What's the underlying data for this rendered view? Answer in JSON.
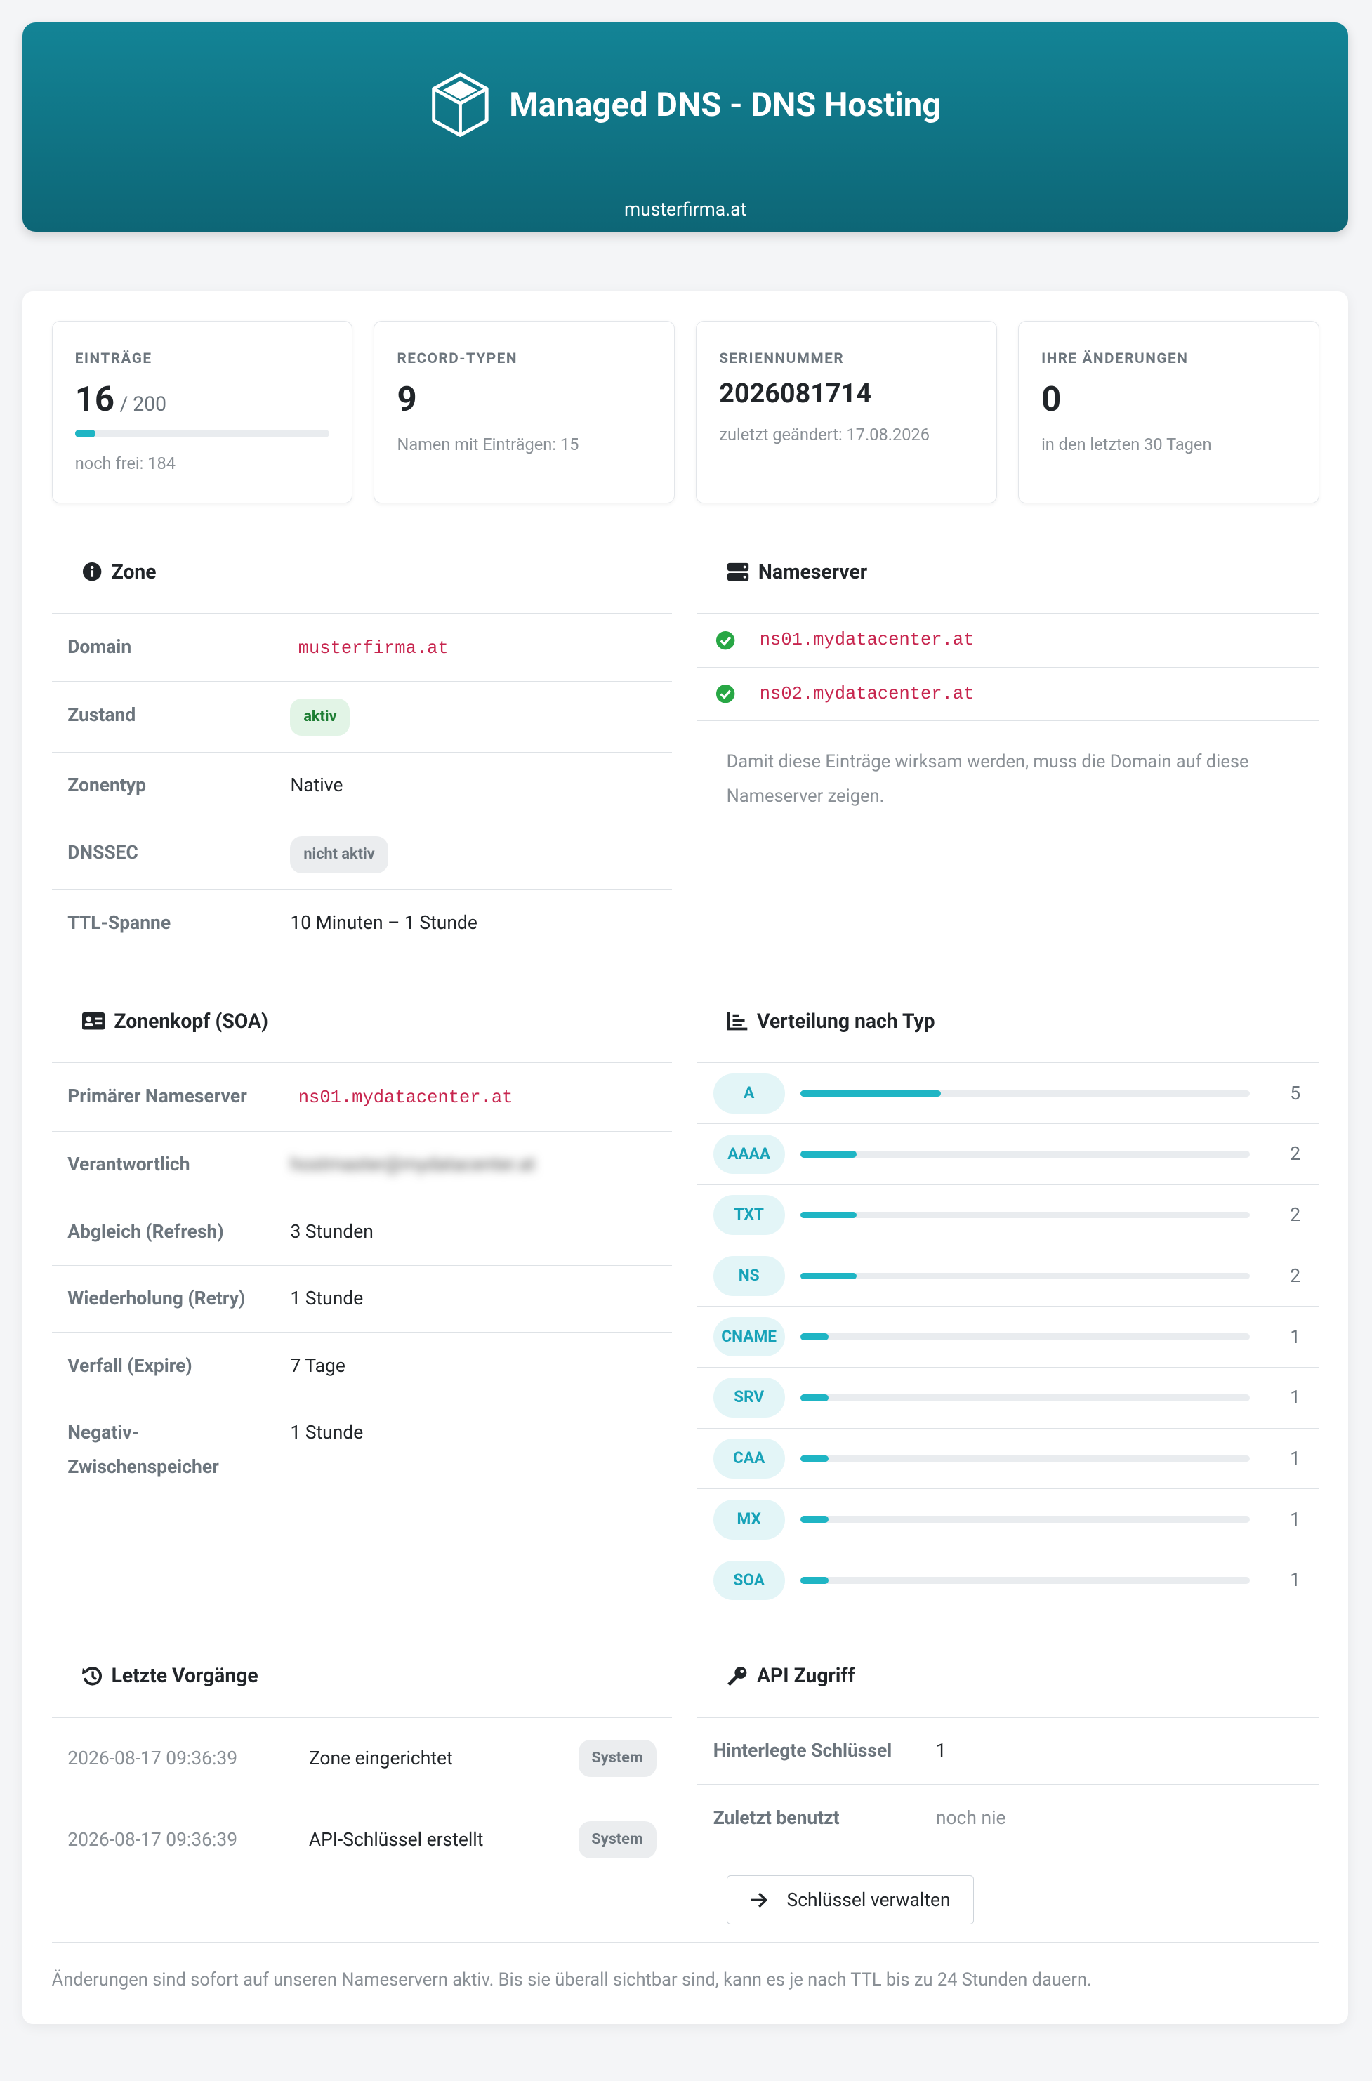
{
  "header": {
    "title": "Managed DNS - DNS Hosting",
    "domain": "musterfirma.at"
  },
  "stats": [
    {
      "label": "EINTRÄGE",
      "value": 16,
      "limit": {
        "value": 200,
        "label": "/ 200"
      },
      "note": "noch frei: 184"
    },
    {
      "label": "RECORD-TYPEN",
      "value": 9,
      "note": "Namen mit Einträgen: 15"
    },
    {
      "label": "SERIENNUMMER",
      "value": "2026081714",
      "note": "zuletzt geändert: 17.08.2026"
    },
    {
      "label": "IHRE ÄNDERUNGEN",
      "value": 0,
      "note": "in den letzten 30 Tagen"
    }
  ],
  "zone": {
    "title": "Zone",
    "rows": [
      {
        "label": "Domain",
        "value": "musterfirma.at",
        "style": "code"
      },
      {
        "label": "Zustand",
        "value": "aktiv",
        "style": "badge-green"
      },
      {
        "label": "Zonentyp",
        "value": "Native",
        "style": "plain"
      },
      {
        "label": "DNSSEC",
        "value": "nicht aktiv",
        "style": "badge-gray"
      },
      {
        "label": "TTL-Spanne",
        "value": "10 Minuten – 1 Stunde",
        "style": "plain"
      }
    ]
  },
  "nameserver": {
    "title": "Nameserver",
    "servers": [
      "ns01.mydatacenter.at",
      "ns02.mydatacenter.at"
    ],
    "note": "Damit diese Einträge wirksam werden, muss die Domain auf diese Nameserver zeigen."
  },
  "soa": {
    "title": "Zonenkopf (SOA)",
    "rows": [
      {
        "label": "Primärer Nameserver",
        "value": "ns01.mydatacenter.at",
        "style": "code"
      },
      {
        "label": "Verantwortlich",
        "value": "hostmaster@mydatacenter.at",
        "style": "blurred"
      },
      {
        "label": "Abgleich (Refresh)",
        "value": "3 Stunden",
        "style": "plain"
      },
      {
        "label": "Wiederholung (Retry)",
        "value": "1 Stunde",
        "style": "plain"
      },
      {
        "label": "Verfall (Expire)",
        "value": "7 Tage",
        "style": "plain"
      },
      {
        "label": "Negativ-Zwischenspeicher",
        "value": "1 Stunde",
        "style": "plain"
      }
    ]
  },
  "distribution": {
    "title": "Verteilung nach Typ",
    "rows": [
      {
        "type": "A",
        "count": 5
      },
      {
        "type": "AAAA",
        "count": 2
      },
      {
        "type": "TXT",
        "count": 2
      },
      {
        "type": "NS",
        "count": 2
      },
      {
        "type": "CNAME",
        "count": 1
      },
      {
        "type": "SRV",
        "count": 1
      },
      {
        "type": "CAA",
        "count": 1
      },
      {
        "type": "MX",
        "count": 1
      },
      {
        "type": "SOA",
        "count": 1
      }
    ]
  },
  "activity": {
    "title": "Letzte Vorgänge",
    "rows": [
      {
        "time": "2026-08-17 09:36:39",
        "text": "Zone eingerichtet",
        "source": "System"
      },
      {
        "time": "2026-08-17 09:36:39",
        "text": "API-Schlüssel erstellt",
        "source": "System"
      }
    ]
  },
  "api": {
    "title": "API Zugriff",
    "rows": [
      {
        "label": "Hinterlegte Schlüssel",
        "value": 1,
        "style": "plain"
      },
      {
        "label": "Zuletzt benutzt",
        "value": "noch nie",
        "style": "muted"
      }
    ],
    "button": "Schlüssel verwalten"
  },
  "footer": "Änderungen sind sofort auf unseren Nameservern aktiv. Bis sie überall sichtbar sind, kann es je nach TTL bis zu 24 Stunden dauern."
}
